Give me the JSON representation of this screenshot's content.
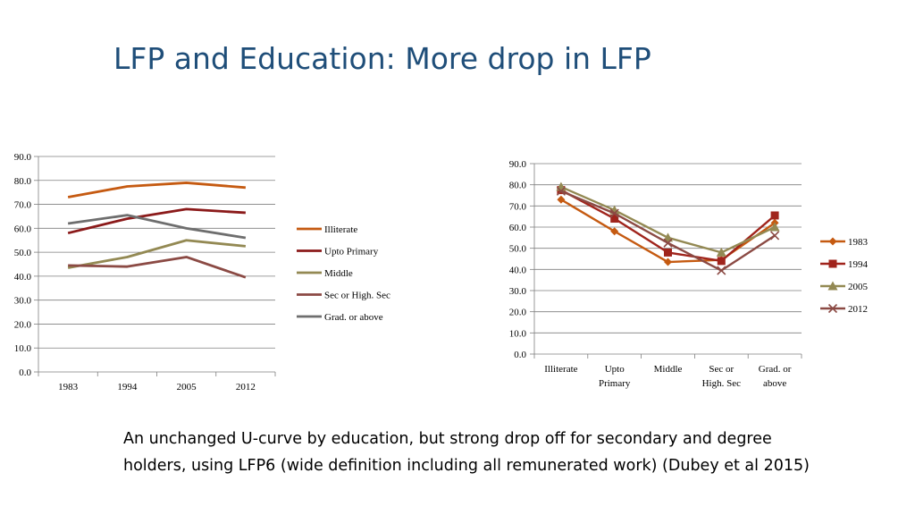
{
  "slide": {
    "title": "LFP and Education: More drop in LFP",
    "caption": "An unchanged U-curve by education, but strong drop off for secondary and degree holders, using LFP6 (wide definition including all remunerated work) (Dubey et al 2015)"
  },
  "chart_data": [
    {
      "type": "line",
      "categories": [
        "1983",
        "1994",
        "2005",
        "2012"
      ],
      "ylim": [
        0,
        90
      ],
      "yticks": [
        "0.0",
        "10.0",
        "20.0",
        "30.0",
        "40.0",
        "50.0",
        "60.0",
        "70.0",
        "80.0",
        "90.0"
      ],
      "grid": true,
      "legend_position": "right",
      "series": [
        {
          "name": "Illiterate",
          "color": "#c55a11",
          "values": [
            73.0,
            77.5,
            79.0,
            77.0
          ]
        },
        {
          "name": "Upto Primary",
          "color": "#8b1a1a",
          "values": [
            58.0,
            64.0,
            68.0,
            66.5
          ]
        },
        {
          "name": "Middle",
          "color": "#938953",
          "values": [
            43.5,
            48.0,
            55.0,
            52.5
          ]
        },
        {
          "name": "Sec or High. Sec",
          "color": "#8b4a44",
          "values": [
            44.5,
            44.0,
            48.0,
            39.5
          ]
        },
        {
          "name": "Grad. or above",
          "color": "#6e6e6e",
          "values": [
            62.0,
            65.5,
            60.0,
            56.0
          ]
        }
      ]
    },
    {
      "type": "line",
      "categories": [
        "Illiterate",
        "Upto Primary",
        "Middle",
        "Sec or High. Sec",
        "Grad. or above"
      ],
      "ylim": [
        0,
        90
      ],
      "yticks": [
        "0.0",
        "10.0",
        "20.0",
        "30.0",
        "40.0",
        "50.0",
        "60.0",
        "70.0",
        "80.0",
        "90.0"
      ],
      "grid": true,
      "legend_position": "right",
      "series": [
        {
          "name": "1983",
          "color": "#c55a11",
          "marker": "diamond",
          "values": [
            73.0,
            58.0,
            43.5,
            44.5,
            62.0
          ]
        },
        {
          "name": "1994",
          "color": "#a0241c",
          "marker": "square",
          "values": [
            77.5,
            64.0,
            48.0,
            44.0,
            65.5
          ]
        },
        {
          "name": "2005",
          "color": "#938953",
          "marker": "triangle",
          "values": [
            79.0,
            68.0,
            55.0,
            48.0,
            60.0
          ]
        },
        {
          "name": "2012",
          "color": "#8b4a44",
          "marker": "x",
          "values": [
            77.0,
            66.5,
            52.5,
            39.5,
            56.0
          ]
        }
      ]
    }
  ]
}
